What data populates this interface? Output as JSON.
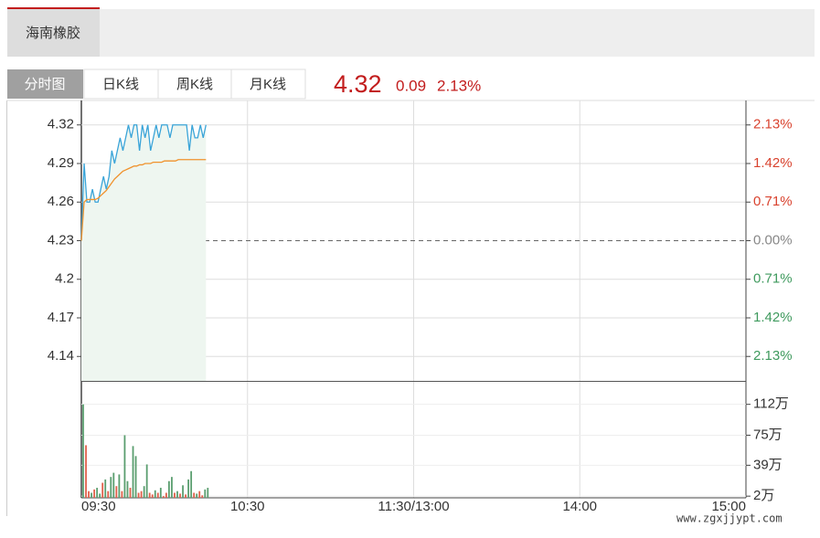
{
  "header": {
    "tab": "海南橡胶"
  },
  "tabs": [
    "分时图",
    "日K线",
    "周K线",
    "月K线"
  ],
  "quote": {
    "price": "4.32",
    "change": "0.09",
    "percent": "2.13%"
  },
  "watermark": "www.zgxjjypt.com",
  "chart_data": {
    "type": "line",
    "x": [
      0,
      1,
      2,
      3,
      4,
      5,
      6,
      7,
      8,
      9,
      10,
      11,
      12,
      13,
      14,
      15,
      16,
      17,
      18,
      19,
      20,
      21,
      22,
      23,
      24,
      25,
      26,
      27,
      28,
      29,
      30,
      31,
      32,
      33,
      34,
      35,
      36,
      37,
      38,
      39,
      40,
      41,
      42,
      43,
      44,
      45
    ],
    "xlim": [
      0,
      240
    ],
    "xticks": [
      {
        "value": 0,
        "label": "09:30"
      },
      {
        "value": 60,
        "label": "10:30"
      },
      {
        "value": 120,
        "label": "11:30/13:00"
      },
      {
        "value": 180,
        "label": "14:00"
      },
      {
        "value": 240,
        "label": "15:00"
      }
    ],
    "series": [
      {
        "name": "price",
        "color": "#3aa4d8",
        "values": [
          4.23,
          4.29,
          4.26,
          4.26,
          4.27,
          4.26,
          4.26,
          4.27,
          4.28,
          4.27,
          4.28,
          4.3,
          4.29,
          4.3,
          4.31,
          4.3,
          4.31,
          4.32,
          4.31,
          4.32,
          4.32,
          4.3,
          4.32,
          4.31,
          4.32,
          4.3,
          4.31,
          4.32,
          4.31,
          4.32,
          4.32,
          4.32,
          4.31,
          4.32,
          4.32,
          4.32,
          4.32,
          4.32,
          4.32,
          4.3,
          4.32,
          4.31,
          4.31,
          4.32,
          4.31,
          4.32
        ]
      },
      {
        "name": "average",
        "color": "#f0922d",
        "values": [
          4.23,
          4.26,
          4.262,
          4.262,
          4.262,
          4.262,
          4.263,
          4.265,
          4.267,
          4.269,
          4.272,
          4.275,
          4.278,
          4.28,
          4.282,
          4.284,
          4.285,
          4.286,
          4.287,
          4.288,
          4.288,
          4.289,
          4.289,
          4.29,
          4.29,
          4.29,
          4.291,
          4.291,
          4.291,
          4.291,
          4.292,
          4.292,
          4.292,
          4.292,
          4.292,
          4.293,
          4.293,
          4.293,
          4.293,
          4.293,
          4.293,
          4.293,
          4.293,
          4.293,
          4.293,
          4.293
        ]
      }
    ],
    "ylim": [
      4.121,
      4.339
    ],
    "yticks": [
      4.32,
      4.29,
      4.26,
      4.23,
      4.2,
      4.17,
      4.14
    ],
    "base": 4.23,
    "y2lim": [
      -2.58,
      2.58
    ],
    "y2ticks": [
      {
        "value": 2.13,
        "label": "2.13%"
      },
      {
        "value": 1.42,
        "label": "1.42%"
      },
      {
        "value": 0.71,
        "label": "0.71%"
      },
      {
        "value": 0,
        "label": "0.00%"
      },
      {
        "value": -0.71,
        "label": "0.71%"
      },
      {
        "value": -1.42,
        "label": "1.42%"
      },
      {
        "value": -2.13,
        "label": "2.13%"
      }
    ],
    "volume": {
      "values": [
        112,
        63,
        8,
        6,
        10,
        12,
        5,
        18,
        22,
        8,
        25,
        30,
        14,
        28,
        8,
        75,
        20,
        12,
        62,
        50,
        6,
        8,
        14,
        40,
        6,
        4,
        9,
        6,
        12,
        2,
        6,
        20,
        25,
        6,
        8,
        5,
        15,
        4,
        22,
        32,
        6,
        5,
        8,
        3,
        10,
        12
      ],
      "colors": [
        "#5a9e6f",
        "#e0604a",
        "#e0604a",
        "#5a9e6f",
        "#e0604a",
        "#5a9e6f",
        "#5a9e6f",
        "#e0604a",
        "#5a9e6f",
        "#e0604a",
        "#5a9e6f",
        "#5a9e6f",
        "#e0604a",
        "#5a9e6f",
        "#e0604a",
        "#5a9e6f",
        "#5a9e6f",
        "#e0604a",
        "#5a9e6f",
        "#5a9e6f",
        "#e0604a",
        "#e0604a",
        "#5a9e6f",
        "#5a9e6f",
        "#e0604a",
        "#e0604a",
        "#5a9e6f",
        "#e0604a",
        "#5a9e6f",
        "#e0604a",
        "#e0604a",
        "#5a9e6f",
        "#5a9e6f",
        "#e0604a",
        "#5a9e6f",
        "#e0604a",
        "#5a9e6f",
        "#e0604a",
        "#5a9e6f",
        "#5a9e6f",
        "#e0604a",
        "#5a9e6f",
        "#e0604a",
        "#e0604a",
        "#5a9e6f",
        "#5a9e6f"
      ],
      "ylim": [
        0,
        139
      ],
      "yticks": [
        {
          "value": 112,
          "label": "112万"
        },
        {
          "value": 75,
          "label": "75万"
        },
        {
          "value": 39,
          "label": "39万"
        },
        {
          "value": 2,
          "label": "2万"
        }
      ]
    }
  }
}
